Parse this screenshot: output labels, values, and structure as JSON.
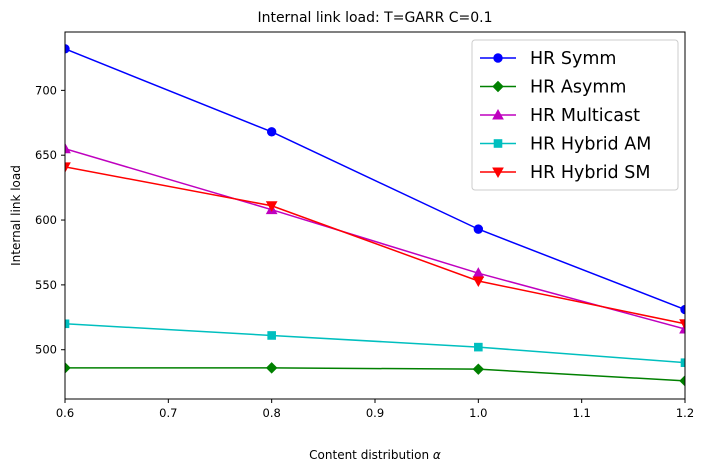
{
  "chart_data": {
    "type": "line",
    "title": "Internal link load: T=GARR C=0.1",
    "xlabel": "Content distribution",
    "xlabel_symbol": "α",
    "ylabel": "Internal link load",
    "xlim": [
      0.6,
      1.2
    ],
    "ylim": [
      462,
      745
    ],
    "xticks": [
      0.6,
      0.7,
      0.8,
      0.9,
      1.0,
      1.1,
      1.2
    ],
    "xtick_labels": [
      "0.6",
      "0.7",
      "0.8",
      "0.9",
      "1.0",
      "1.1",
      "1.2"
    ],
    "yticks": [
      500,
      550,
      600,
      650,
      700
    ],
    "ytick_labels": [
      "500",
      "550",
      "600",
      "650",
      "700"
    ],
    "grid": false,
    "legend_position": "top-right",
    "x": [
      0.6,
      0.8,
      1.0,
      1.2
    ],
    "series": [
      {
        "name": "HR Symm",
        "color": "#0000ff",
        "marker": "circle",
        "values": [
          732,
          668,
          593,
          531
        ]
      },
      {
        "name": "HR Asymm",
        "color": "#008000",
        "marker": "diamond",
        "values": [
          486,
          486,
          485,
          476
        ]
      },
      {
        "name": "HR Multicast",
        "color": "#bf00bf",
        "marker": "triangle-up",
        "values": [
          655,
          608,
          559,
          516
        ]
      },
      {
        "name": "HR Hybrid AM",
        "color": "#00bfbf",
        "marker": "square",
        "values": [
          520,
          511,
          502,
          490
        ]
      },
      {
        "name": "HR Hybrid SM",
        "color": "#ff0000",
        "marker": "triangle-down",
        "values": [
          641,
          611,
          553,
          520
        ]
      }
    ]
  }
}
